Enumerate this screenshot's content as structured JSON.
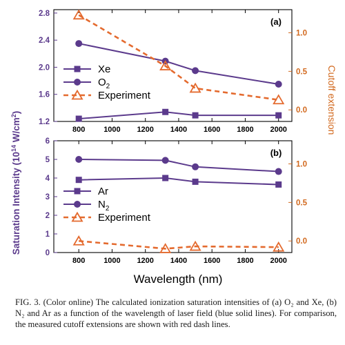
{
  "colors": {
    "sat_series": "#5b3a8c",
    "cutoff_series": "#e46a2e",
    "left_axis": "#5b3a8c",
    "right_axis": "#d2691e",
    "frame": "#000000"
  },
  "shared_axis": {
    "ylabel": "Saturation Intensity (10",
    "ylabel_exp": "14",
    "ylabel_tail": " W/cm",
    "ylabel_exp2": "2",
    "ylabel_close": ")",
    "y2label": "Cutoff extension",
    "xlabel": "Wavelength (nm)"
  },
  "chart_data": [
    {
      "type": "line",
      "panel_label": "(a)",
      "x": [
        800,
        1320,
        1500,
        2000
      ],
      "xlim": [
        650,
        2080
      ],
      "xticks": [
        "800",
        "1000",
        "1200",
        "1400",
        "1600",
        "1800",
        "2000"
      ],
      "ylim": [
        1.2,
        2.85
      ],
      "yticks": [
        "1.2",
        "1.6",
        "2.0",
        "2.4",
        "2.8"
      ],
      "y2lim": [
        -0.15,
        1.3
      ],
      "y2ticks": [
        "0.0",
        "0.5",
        "1.0"
      ],
      "series": [
        {
          "name": "Xe",
          "marker": "square",
          "axis": "left",
          "values": [
            1.24,
            1.34,
            1.29,
            1.29
          ]
        },
        {
          "name": "O",
          "name_sub": "2",
          "marker": "circle",
          "axis": "left",
          "values": [
            2.35,
            2.09,
            1.95,
            1.75
          ]
        },
        {
          "name": "Experiment",
          "marker": "triangle",
          "axis": "right",
          "values": [
            1.23,
            0.57,
            0.28,
            0.13
          ]
        }
      ]
    },
    {
      "type": "line",
      "panel_label": "(b)",
      "x": [
        800,
        1320,
        1500,
        2000
      ],
      "xlim": [
        650,
        2080
      ],
      "xticks": [
        "800",
        "1000",
        "1200",
        "1400",
        "1600",
        "1800",
        "2000"
      ],
      "ylim": [
        0,
        6
      ],
      "yticks": [
        "0",
        "1",
        "2",
        "3",
        "4",
        "5",
        "6"
      ],
      "y2lim": [
        -0.15,
        1.3
      ],
      "y2ticks": [
        "0.0",
        "0.5",
        "1.0"
      ],
      "series": [
        {
          "name": "Ar",
          "marker": "square",
          "axis": "left",
          "values": [
            3.9,
            4.0,
            3.8,
            3.65
          ]
        },
        {
          "name": "N",
          "name_sub": "2",
          "marker": "circle",
          "axis": "left",
          "values": [
            5.0,
            4.95,
            4.6,
            4.35
          ]
        },
        {
          "name": "Experiment",
          "marker": "triangle",
          "axis": "right",
          "values": [
            0.0,
            -0.1,
            -0.07,
            -0.08
          ]
        }
      ]
    }
  ],
  "caption": {
    "text": "FIG. 3. (Color online) The calculated ionization saturation intensities of (a) O₂ and Xe, (b) N₂ and Ar as a function of the wavelength of laser field (blue solid lines). For comparison, the measured cutoff extensions are shown with red dash lines."
  }
}
